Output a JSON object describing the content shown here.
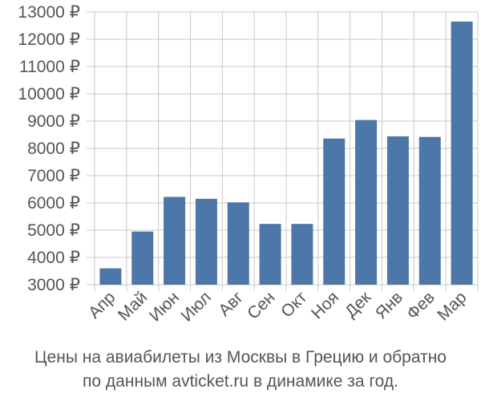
{
  "chart_data": {
    "type": "bar",
    "categories": [
      "Апр",
      "Май",
      "Июн",
      "Июл",
      "Авг",
      "Сен",
      "Окт",
      "Ноя",
      "Дек",
      "Янв",
      "Фев",
      "Мар"
    ],
    "values": [
      3600,
      4950,
      6220,
      6150,
      6020,
      5230,
      5230,
      8360,
      9040,
      8440,
      8420,
      12650
    ],
    "ylim": [
      3000,
      13000
    ],
    "yticks": [
      3000,
      4000,
      5000,
      6000,
      7000,
      8000,
      9000,
      10000,
      11000,
      12000,
      13000
    ],
    "ytick_labels": [
      "3000 ₽",
      "4000 ₽",
      "5000 ₽",
      "6000 ₽",
      "7000 ₽",
      "8000 ₽",
      "9000 ₽",
      "10000 ₽",
      "11000 ₽",
      "12000 ₽",
      "13000 ₽"
    ],
    "grid": "vertical",
    "bar_color": "#4c77a8",
    "grid_color": "#c8c8c8"
  },
  "caption": {
    "line1": "Цены на авиабилеты из Москвы в Грецию и обратно",
    "line2": "по данным avticket.ru в динамике за год."
  }
}
